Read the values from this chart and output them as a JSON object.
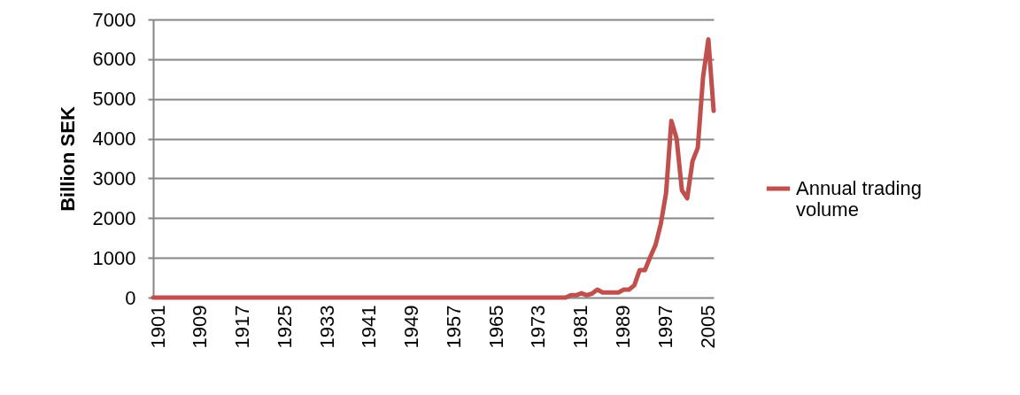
{
  "chart_data": {
    "type": "line",
    "ylabel": "Billion SEK",
    "x": [
      1901,
      1979,
      1980,
      1981,
      1982,
      1983,
      1984,
      1985,
      1986,
      1987,
      1988,
      1989,
      1990,
      1991,
      1992,
      1993,
      1994,
      1995,
      1996,
      1997,
      1998,
      1999,
      2000,
      2001,
      2002,
      2003,
      2004,
      2005,
      2006,
      2007
    ],
    "series": [
      {
        "name": "Annual trading volume",
        "color": "#c0504d",
        "values": [
          0,
          0,
          60,
          60,
          110,
          60,
          100,
          200,
          130,
          130,
          130,
          130,
          200,
          200,
          310,
          690,
          690,
          1020,
          1320,
          1850,
          2630,
          4450,
          4000,
          2700,
          2500,
          3430,
          3770,
          5550,
          6500,
          4700
        ]
      }
    ],
    "xlim": [
      1901,
      2007
    ],
    "xticks": [
      1901,
      1909,
      1917,
      1925,
      1933,
      1941,
      1949,
      1957,
      1965,
      1973,
      1981,
      1989,
      1997,
      2005
    ],
    "ylim": [
      0,
      7000
    ],
    "yticks": [
      0,
      1000,
      2000,
      3000,
      4000,
      5000,
      6000,
      7000
    ],
    "grid": "y",
    "legend": "right",
    "marker": "none",
    "line_style": "solid"
  }
}
